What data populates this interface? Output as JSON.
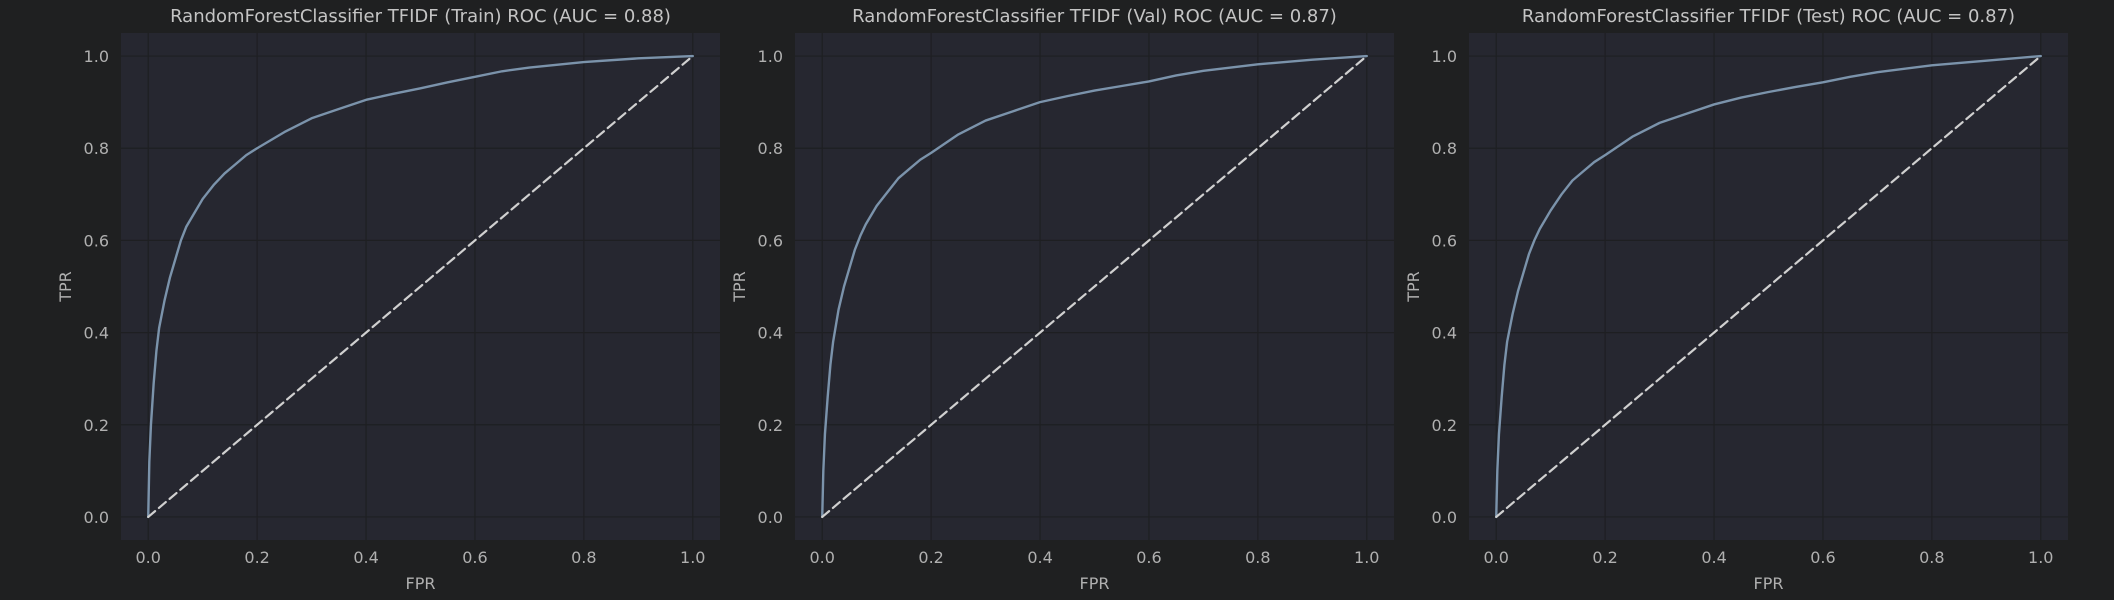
{
  "colors": {
    "figure_bg": "#1f2021",
    "axes_bg": "#262730",
    "grid": "#1e1f22",
    "roc_line": "#7b93ab",
    "diagonal": "#d0d0d0",
    "text": "#c4c4c4"
  },
  "chart_data": [
    {
      "type": "line",
      "title": "RandomForestClassifier TFIDF (Train) ROC (AUC = 0.88)",
      "xlabel": "FPR",
      "ylabel": "TPR",
      "xlim": [
        -0.05,
        1.05
      ],
      "ylim": [
        -0.05,
        1.05
      ],
      "xticks": [
        "0.0",
        "0.2",
        "0.4",
        "0.6",
        "0.8",
        "1.0"
      ],
      "yticks": [
        "0.0",
        "0.2",
        "0.4",
        "0.6",
        "0.8",
        "1.0"
      ],
      "grid": true,
      "series": [
        {
          "style": "solid",
          "x": [
            0,
            0.002,
            0.005,
            0.01,
            0.015,
            0.02,
            0.03,
            0.04,
            0.05,
            0.06,
            0.07,
            0.08,
            0.1,
            0.12,
            0.14,
            0.16,
            0.18,
            0.2,
            0.25,
            0.3,
            0.35,
            0.4,
            0.45,
            0.5,
            0.55,
            0.6,
            0.65,
            0.7,
            0.8,
            0.9,
            1.0
          ],
          "y": [
            0,
            0.12,
            0.2,
            0.29,
            0.36,
            0.41,
            0.47,
            0.52,
            0.56,
            0.6,
            0.63,
            0.65,
            0.69,
            0.72,
            0.745,
            0.765,
            0.785,
            0.8,
            0.835,
            0.865,
            0.885,
            0.905,
            0.918,
            0.93,
            0.943,
            0.955,
            0.967,
            0.975,
            0.987,
            0.995,
            1.0
          ]
        },
        {
          "style": "dashed",
          "x": [
            0,
            1
          ],
          "y": [
            0,
            1
          ]
        }
      ]
    },
    {
      "type": "line",
      "title": "RandomForestClassifier TFIDF (Val) ROC (AUC = 0.87)",
      "xlabel": "FPR",
      "ylabel": "TPR",
      "xlim": [
        -0.05,
        1.05
      ],
      "ylim": [
        -0.05,
        1.05
      ],
      "xticks": [
        "0.0",
        "0.2",
        "0.4",
        "0.6",
        "0.8",
        "1.0"
      ],
      "yticks": [
        "0.0",
        "0.2",
        "0.4",
        "0.6",
        "0.8",
        "1.0"
      ],
      "grid": true,
      "series": [
        {
          "style": "solid",
          "x": [
            0,
            0.002,
            0.005,
            0.01,
            0.015,
            0.02,
            0.03,
            0.04,
            0.05,
            0.06,
            0.07,
            0.08,
            0.1,
            0.12,
            0.14,
            0.16,
            0.18,
            0.2,
            0.25,
            0.3,
            0.35,
            0.4,
            0.45,
            0.5,
            0.55,
            0.6,
            0.65,
            0.7,
            0.8,
            0.9,
            1.0
          ],
          "y": [
            0,
            0.1,
            0.18,
            0.26,
            0.33,
            0.38,
            0.45,
            0.5,
            0.54,
            0.58,
            0.61,
            0.635,
            0.675,
            0.705,
            0.735,
            0.755,
            0.775,
            0.79,
            0.83,
            0.86,
            0.88,
            0.9,
            0.913,
            0.925,
            0.935,
            0.945,
            0.958,
            0.968,
            0.982,
            0.992,
            1.0
          ]
        },
        {
          "style": "dashed",
          "x": [
            0,
            1
          ],
          "y": [
            0,
            1
          ]
        }
      ]
    },
    {
      "type": "line",
      "title": "RandomForestClassifier TFIDF (Test) ROC (AUC = 0.87)",
      "xlabel": "FPR",
      "ylabel": "TPR",
      "xlim": [
        -0.05,
        1.05
      ],
      "ylim": [
        -0.05,
        1.05
      ],
      "xticks": [
        "0.0",
        "0.2",
        "0.4",
        "0.6",
        "0.8",
        "1.0"
      ],
      "yticks": [
        "0.0",
        "0.2",
        "0.4",
        "0.6",
        "0.8",
        "1.0"
      ],
      "grid": true,
      "series": [
        {
          "style": "solid",
          "x": [
            0,
            0.002,
            0.005,
            0.01,
            0.015,
            0.02,
            0.03,
            0.04,
            0.05,
            0.06,
            0.07,
            0.08,
            0.1,
            0.12,
            0.14,
            0.16,
            0.18,
            0.2,
            0.25,
            0.3,
            0.35,
            0.4,
            0.45,
            0.5,
            0.55,
            0.6,
            0.65,
            0.7,
            0.8,
            0.9,
            1.0
          ],
          "y": [
            0,
            0.1,
            0.18,
            0.26,
            0.33,
            0.38,
            0.44,
            0.49,
            0.53,
            0.57,
            0.6,
            0.625,
            0.665,
            0.7,
            0.73,
            0.75,
            0.77,
            0.785,
            0.825,
            0.855,
            0.875,
            0.895,
            0.91,
            0.922,
            0.933,
            0.943,
            0.955,
            0.965,
            0.98,
            0.99,
            1.0
          ]
        },
        {
          "style": "dashed",
          "x": [
            0,
            1
          ],
          "y": [
            0,
            1
          ]
        }
      ]
    }
  ]
}
